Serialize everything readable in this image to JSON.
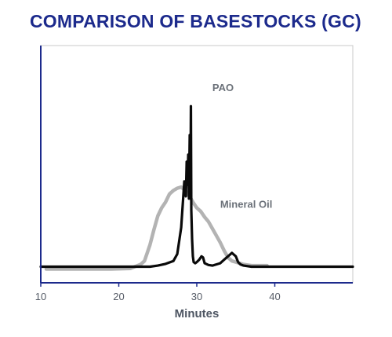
{
  "chart_data": {
    "type": "line",
    "title": "COMPARISON OF BASESTOCKS (GC)",
    "xlabel": "Minutes",
    "ylabel": "",
    "xlim": [
      10,
      50
    ],
    "ylim": [
      0,
      100
    ],
    "xticks": [
      10,
      20,
      30,
      40
    ],
    "grid": false,
    "legend": "none",
    "colors": {
      "title": "#1c2a8c",
      "axis": "#1c2a8c",
      "pao": "#0a0a0a",
      "mineral_oil": "#b3b3b3",
      "frame": "#c8c8c8"
    },
    "series": [
      {
        "name": "Mineral Oil",
        "x": [
          10.7,
          13,
          16,
          19,
          21.5,
          22.8,
          23.3,
          24,
          24.5,
          25,
          25.5,
          26,
          26.5,
          27,
          27.5,
          28,
          28.5,
          29,
          29.5,
          30,
          30.5,
          31,
          31.5,
          32,
          32.5,
          33,
          33.5,
          34,
          34.5,
          35,
          35.5,
          36,
          37,
          38,
          39
        ],
        "y": [
          -1,
          -1,
          -1,
          -1,
          -0.5,
          3,
          6,
          20,
          33,
          45,
          52,
          57,
          64,
          67,
          69,
          70,
          67,
          63,
          57,
          52,
          49,
          44,
          40,
          34,
          28,
          22,
          15,
          9,
          6,
          5,
          4,
          3,
          2,
          2,
          2
        ]
      },
      {
        "name": "PAO",
        "x": [
          10,
          15,
          20,
          24,
          25,
          26,
          27,
          27.5,
          28,
          28.2,
          28.4,
          28.6,
          28.7,
          28.8,
          28.9,
          29.0,
          29.1,
          29.2,
          29.25,
          29.3,
          29.4,
          29.5,
          29.6,
          29.8,
          30,
          30.3,
          30.6,
          30.8,
          31,
          31.5,
          32,
          33,
          33.5,
          34,
          34.5,
          35,
          35.3,
          35.6,
          36,
          36.5,
          37,
          38,
          40,
          45,
          50
        ],
        "y": [
          1,
          1,
          1,
          1,
          2,
          3.5,
          6,
          12,
          35,
          55,
          75,
          62,
          92,
          72,
          98,
          60,
          115,
          80,
          140,
          50,
          25,
          10,
          5,
          4,
          5,
          7,
          10,
          9,
          4,
          2.5,
          2,
          4,
          7,
          10,
          13,
          10,
          5,
          3,
          2,
          1.5,
          1,
          1,
          1,
          1,
          1
        ]
      }
    ],
    "annotations": [
      {
        "text": "PAO",
        "x": 32,
        "y": 153
      },
      {
        "text": "Mineral Oil",
        "x": 33,
        "y": 52
      }
    ]
  }
}
